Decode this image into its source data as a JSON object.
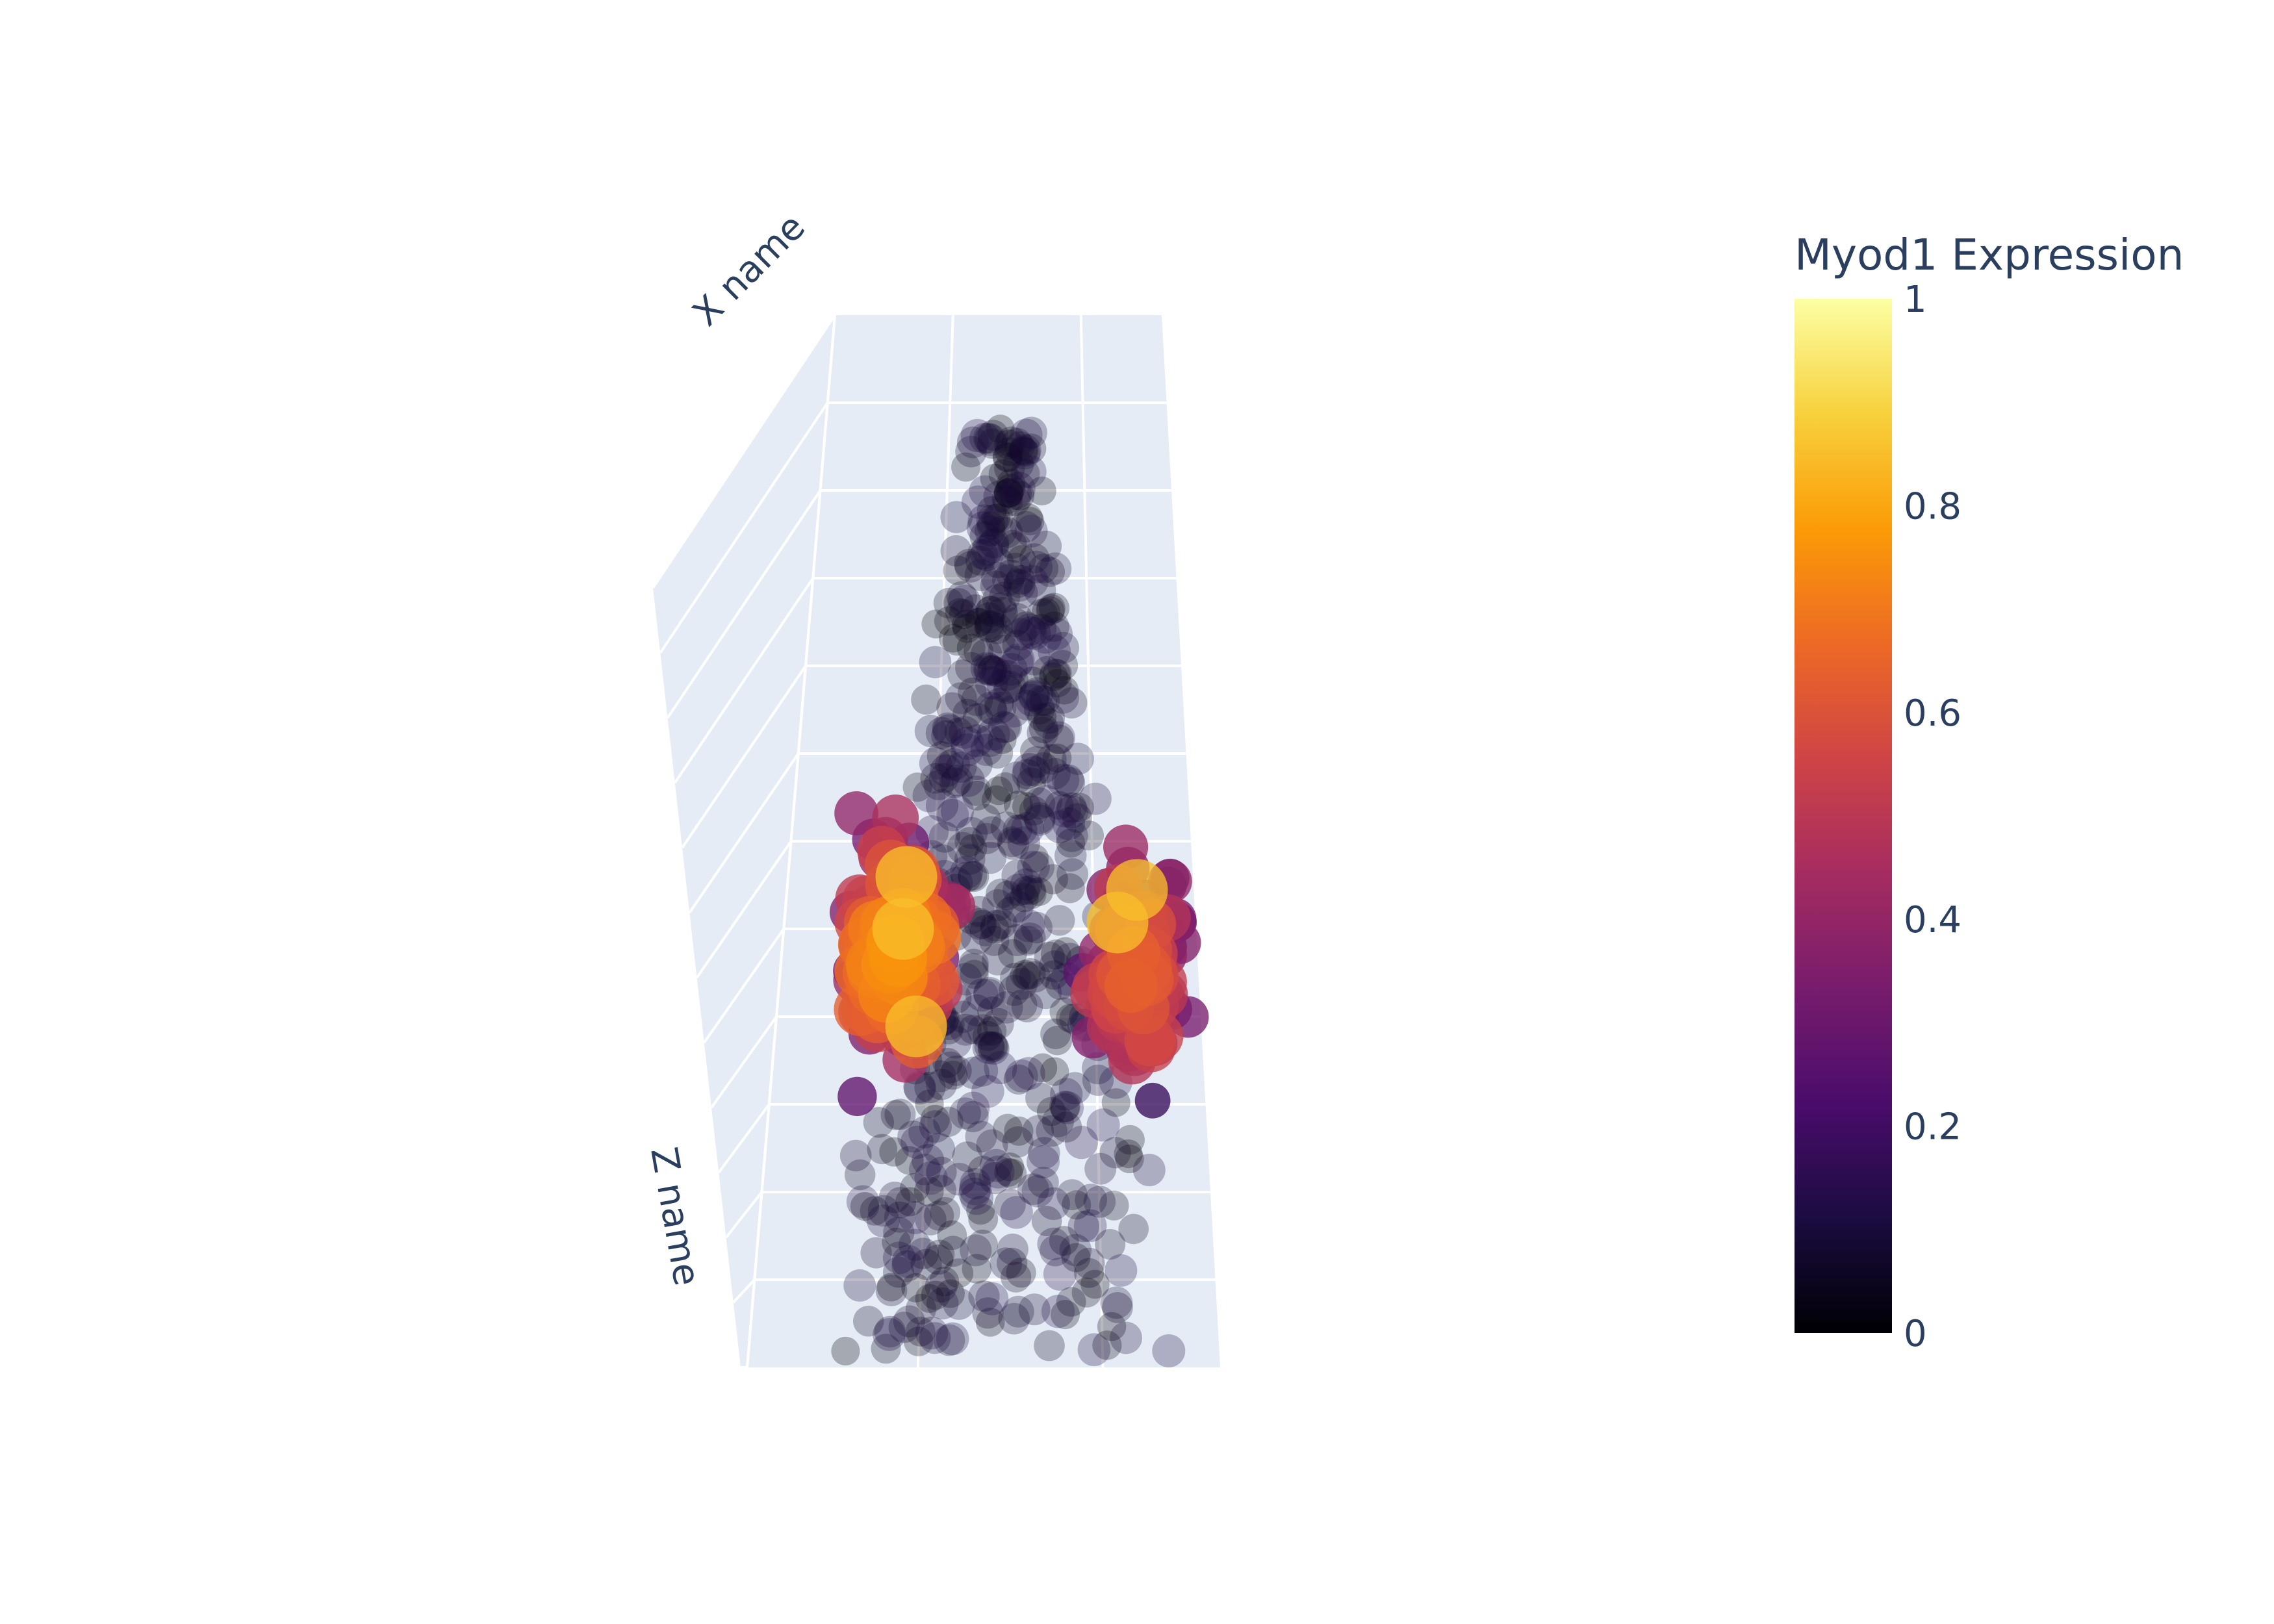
{
  "chart_data": {
    "type": "scatter3d",
    "axes": {
      "x_title": "X name",
      "z_title": "Z name"
    },
    "colorbar": {
      "title": "Myod1 Expression",
      "range": [
        0,
        1
      ],
      "ticks": [
        {
          "value": 0,
          "label": "0"
        },
        {
          "value": 0.2,
          "label": "0.2"
        },
        {
          "value": 0.4,
          "label": "0.4"
        },
        {
          "value": 0.6,
          "label": "0.6"
        },
        {
          "value": 0.8,
          "label": "0.8"
        },
        {
          "value": 1,
          "label": "1"
        }
      ],
      "colorscale": "inferno",
      "colors": [
        "#000004",
        "#1b0c41",
        "#4a0c6b",
        "#781c6d",
        "#a52c60",
        "#cf4446",
        "#ed6925",
        "#fb9b06",
        "#f7d13d",
        "#fcffa4"
      ]
    },
    "marker_size_encodes": "Myod1 Expression",
    "point_count": 900
  }
}
